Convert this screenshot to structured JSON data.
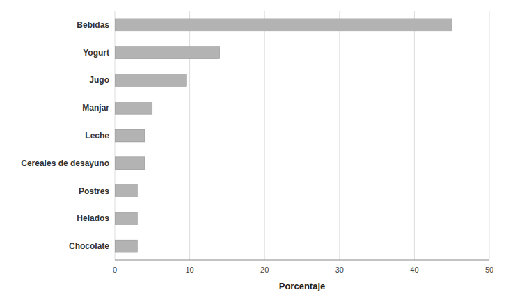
{
  "chart_data": {
    "type": "bar",
    "orientation": "horizontal",
    "categories": [
      "Chocolate",
      "Helados",
      "Postres",
      "Cereales de desayuno",
      "Leche",
      "Manjar",
      "Jugo",
      "Yogurt",
      "Bebidas"
    ],
    "values": [
      3.0,
      3.0,
      3.0,
      4.0,
      4.0,
      5.0,
      9.5,
      14.0,
      45.0
    ],
    "color": "#b3b3b3",
    "xlabel": "Porcentaje",
    "xlim": [
      0,
      50
    ],
    "xticks": [
      0,
      10,
      20,
      30,
      40,
      50
    ],
    "grid": true
  }
}
